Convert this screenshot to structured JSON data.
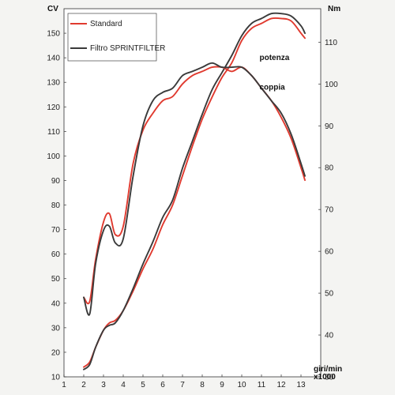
{
  "chart_data": {
    "type": "line",
    "title": "",
    "xlabel": "giri/min x1000",
    "ylabel_left": "CV",
    "ylabel_right": "Nm",
    "xlim": [
      1,
      14
    ],
    "ylim_left": [
      10,
      160
    ],
    "ylim_right": [
      30,
      118
    ],
    "x_ticks": [
      1,
      2,
      3,
      4,
      5,
      6,
      7,
      8,
      9,
      10,
      11,
      12,
      13
    ],
    "y_left_ticks": [
      10,
      20,
      30,
      40,
      50,
      60,
      70,
      80,
      90,
      100,
      110,
      120,
      130,
      140,
      150
    ],
    "y_right_ticks": [
      30,
      40,
      50,
      60,
      70,
      80,
      90,
      100,
      110
    ],
    "grid": false,
    "legend": {
      "placement": "top-left",
      "entries": [
        {
          "label": "Standard",
          "color": "#e03a2f"
        },
        {
          "label": "Filtro SPRINTFILTER",
          "color": "#3a3a3a"
        }
      ]
    },
    "annotations": [
      {
        "text": "potenza",
        "x": 10.9,
        "y_left": 139
      },
      {
        "text": "coppia",
        "x": 10.9,
        "y_left": 127
      }
    ],
    "series": [
      {
        "name": "Standard",
        "curve": "potenza",
        "axis": "left",
        "color": "#e03a2f",
        "x": [
          2.0,
          2.3,
          2.6,
          3.0,
          3.3,
          3.6,
          4.0,
          4.5,
          5.0,
          5.5,
          6.0,
          6.5,
          7.0,
          7.5,
          8.0,
          8.5,
          9.0,
          9.5,
          10.0,
          10.5,
          11.0,
          11.5,
          12.0,
          12.5,
          13.0,
          13.2
        ],
        "y": [
          14,
          16,
          22,
          29,
          32,
          33,
          37,
          45,
          54,
          62,
          72,
          80,
          92,
          104,
          115,
          124,
          132,
          138,
          147,
          152,
          154,
          156,
          156,
          155,
          150,
          148
        ]
      },
      {
        "name": "Filtro SPRINTFILTER",
        "curve": "potenza",
        "axis": "left",
        "color": "#3a3a3a",
        "x": [
          2.0,
          2.3,
          2.6,
          3.0,
          3.3,
          3.6,
          4.0,
          4.5,
          5.0,
          5.5,
          6.0,
          6.5,
          7.0,
          7.5,
          8.0,
          8.5,
          9.0,
          9.5,
          10.0,
          10.5,
          11.0,
          11.5,
          12.0,
          12.5,
          13.0,
          13.2
        ],
        "y": [
          13,
          15,
          22,
          29,
          31,
          32,
          37,
          46,
          56,
          65,
          75,
          82,
          95,
          106,
          117,
          127,
          134,
          141,
          149,
          154,
          156,
          158,
          158,
          157,
          153,
          150
        ]
      },
      {
        "name": "Standard",
        "curve": "coppia",
        "axis": "right",
        "color": "#e03a2f",
        "x": [
          2.0,
          2.3,
          2.6,
          3.0,
          3.3,
          3.6,
          4.0,
          4.5,
          5.0,
          5.5,
          6.0,
          6.5,
          7.0,
          7.5,
          8.0,
          8.5,
          9.0,
          9.5,
          10.0,
          10.5,
          11.0,
          11.5,
          12.0,
          12.5,
          13.0,
          13.2
        ],
        "y": [
          49,
          48,
          58,
          67,
          69,
          64,
          66,
          81,
          89,
          93,
          96,
          97,
          100,
          102,
          103,
          104,
          104,
          103,
          104,
          102,
          99,
          96,
          92,
          87,
          80,
          77
        ]
      },
      {
        "name": "Filtro SPRINTFILTER",
        "curve": "coppia",
        "axis": "right",
        "color": "#3a3a3a",
        "x": [
          2.0,
          2.3,
          2.6,
          3.0,
          3.3,
          3.6,
          4.0,
          4.5,
          5.0,
          5.5,
          6.0,
          6.5,
          7.0,
          7.5,
          8.0,
          8.5,
          9.0,
          9.5,
          10.0,
          10.5,
          11.0,
          11.5,
          12.0,
          12.5,
          13.0,
          13.2
        ],
        "y": [
          49,
          45,
          57,
          65,
          66,
          62,
          63,
          78,
          90,
          96,
          98,
          99,
          102,
          103,
          104,
          105,
          104,
          104,
          104,
          102,
          99,
          96,
          93,
          88,
          81,
          78
        ]
      }
    ]
  }
}
